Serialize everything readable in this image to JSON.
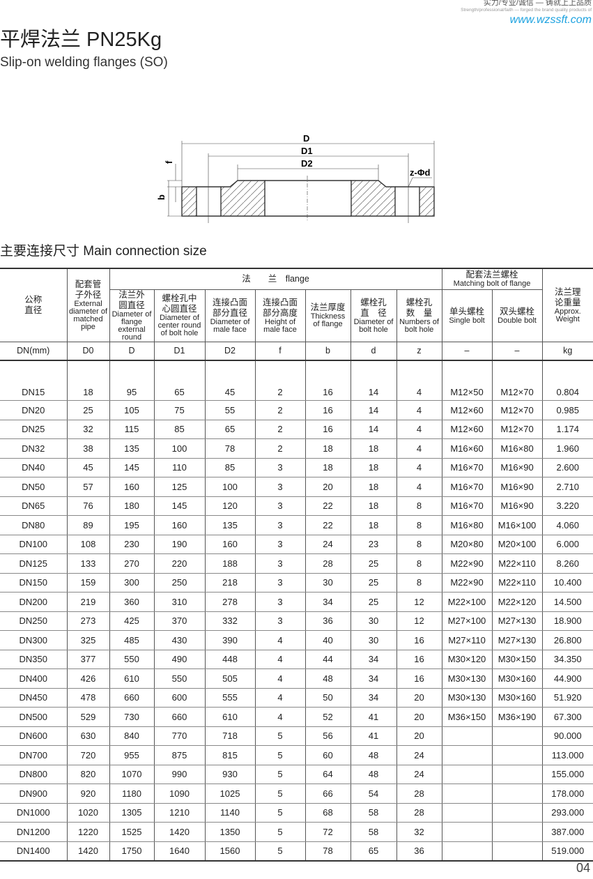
{
  "header": {
    "slogan_cn": "实力/专业/诚信 — 铸就上上品质",
    "slogan_en": "Strength/professional/faith — forged the brand quality products of",
    "website": "www.wzssft.com"
  },
  "title": "平焊法兰 PN25Kg",
  "subtitle": "Slip-on welding flanges (SO)",
  "diagram": {
    "labels": {
      "D": "D",
      "D1": "D1",
      "D2": "D2",
      "f": "f",
      "b": "b",
      "hole": "z-Φd"
    }
  },
  "section_title": "主要连接尺寸  Main connection size",
  "table": {
    "headers": {
      "nominal_cn": "公称直径",
      "pipe_cn": "配套管子外径",
      "pipe_en": "External diameter of matched pipe",
      "flange_group": "法　　兰　flange",
      "bolt_group_cn": "配套法兰螺栓",
      "bolt_group_en": "Matching bolt of flange",
      "weight_cn": "法兰理论重量",
      "weight_en": "Approx. Weight",
      "D_cn": "法兰外圆直径",
      "D_en": "Diameter of flange external round",
      "D1_cn": "螺栓孔中心圆直径",
      "D1_en": "Diameter of center round of bolt hole",
      "D2_cn": "连接凸面部分直径",
      "D2_en": "Diameter of male face",
      "f_cn": "连接凸面部分高度",
      "f_en": "Height of male face",
      "b_cn": "法兰厚度",
      "b_en": "Thickness of flange",
      "d_cn": "螺栓孔直　径",
      "d_en": "Diameter of bolt hole",
      "z_cn": "螺栓孔数　量",
      "z_en": "Numbers of bolt hole",
      "single_cn": "单头螺栓",
      "single_en": "Single bolt",
      "double_cn": "双头螺栓",
      "double_en": "Double bolt"
    },
    "units": [
      "DN(mm)",
      "D0",
      "D",
      "D1",
      "D2",
      "f",
      "b",
      "d",
      "z",
      "–",
      "–",
      "kg"
    ],
    "rows": [
      [
        "DN15",
        "18",
        "95",
        "65",
        "45",
        "2",
        "16",
        "14",
        "4",
        "M12×50",
        "M12×70",
        "0.804"
      ],
      [
        "DN20",
        "25",
        "105",
        "75",
        "55",
        "2",
        "16",
        "14",
        "4",
        "M12×60",
        "M12×70",
        "0.985"
      ],
      [
        "DN25",
        "32",
        "115",
        "85",
        "65",
        "2",
        "16",
        "14",
        "4",
        "M12×60",
        "M12×70",
        "1.174"
      ],
      [
        "DN32",
        "38",
        "135",
        "100",
        "78",
        "2",
        "18",
        "18",
        "4",
        "M16×60",
        "M16×80",
        "1.960"
      ],
      [
        "DN40",
        "45",
        "145",
        "110",
        "85",
        "3",
        "18",
        "18",
        "4",
        "M16×70",
        "M16×90",
        "2.600"
      ],
      [
        "DN50",
        "57",
        "160",
        "125",
        "100",
        "3",
        "20",
        "18",
        "4",
        "M16×70",
        "M16×90",
        "2.710"
      ],
      [
        "DN65",
        "76",
        "180",
        "145",
        "120",
        "3",
        "22",
        "18",
        "8",
        "M16×70",
        "M16×90",
        "3.220"
      ],
      [
        "DN80",
        "89",
        "195",
        "160",
        "135",
        "3",
        "22",
        "18",
        "8",
        "M16×80",
        "M16×100",
        "4.060"
      ],
      [
        "DN100",
        "108",
        "230",
        "190",
        "160",
        "3",
        "24",
        "23",
        "8",
        "M20×80",
        "M20×100",
        "6.000"
      ],
      [
        "DN125",
        "133",
        "270",
        "220",
        "188",
        "3",
        "28",
        "25",
        "8",
        "M22×90",
        "M22×110",
        "8.260"
      ],
      [
        "DN150",
        "159",
        "300",
        "250",
        "218",
        "3",
        "30",
        "25",
        "8",
        "M22×90",
        "M22×110",
        "10.400"
      ],
      [
        "DN200",
        "219",
        "360",
        "310",
        "278",
        "3",
        "34",
        "25",
        "12",
        "M22×100",
        "M22×120",
        "14.500"
      ],
      [
        "DN250",
        "273",
        "425",
        "370",
        "332",
        "3",
        "36",
        "30",
        "12",
        "M27×100",
        "M27×130",
        "18.900"
      ],
      [
        "DN300",
        "325",
        "485",
        "430",
        "390",
        "4",
        "40",
        "30",
        "16",
        "M27×110",
        "M27×130",
        "26.800"
      ],
      [
        "DN350",
        "377",
        "550",
        "490",
        "448",
        "4",
        "44",
        "34",
        "16",
        "M30×120",
        "M30×150",
        "34.350"
      ],
      [
        "DN400",
        "426",
        "610",
        "550",
        "505",
        "4",
        "48",
        "34",
        "16",
        "M30×130",
        "M30×160",
        "44.900"
      ],
      [
        "DN450",
        "478",
        "660",
        "600",
        "555",
        "4",
        "50",
        "34",
        "20",
        "M30×130",
        "M30×160",
        "51.920"
      ],
      [
        "DN500",
        "529",
        "730",
        "660",
        "610",
        "4",
        "52",
        "41",
        "20",
        "M36×150",
        "M36×190",
        "67.300"
      ],
      [
        "DN600",
        "630",
        "840",
        "770",
        "718",
        "5",
        "56",
        "41",
        "20",
        "",
        "",
        "90.000"
      ],
      [
        "DN700",
        "720",
        "955",
        "875",
        "815",
        "5",
        "60",
        "48",
        "24",
        "",
        "",
        "113.000"
      ],
      [
        "DN800",
        "820",
        "1070",
        "990",
        "930",
        "5",
        "64",
        "48",
        "24",
        "",
        "",
        "155.000"
      ],
      [
        "DN900",
        "920",
        "1180",
        "1090",
        "1025",
        "5",
        "66",
        "54",
        "28",
        "",
        "",
        "178.000"
      ],
      [
        "DN1000",
        "1020",
        "1305",
        "1210",
        "1140",
        "5",
        "68",
        "58",
        "28",
        "",
        "",
        "293.000"
      ],
      [
        "DN1200",
        "1220",
        "1525",
        "1420",
        "1350",
        "5",
        "72",
        "58",
        "32",
        "",
        "",
        "387.000"
      ],
      [
        "DN1400",
        "1420",
        "1750",
        "1640",
        "1560",
        "5",
        "78",
        "65",
        "36",
        "",
        "",
        "519.000"
      ]
    ]
  },
  "page_number": "04"
}
